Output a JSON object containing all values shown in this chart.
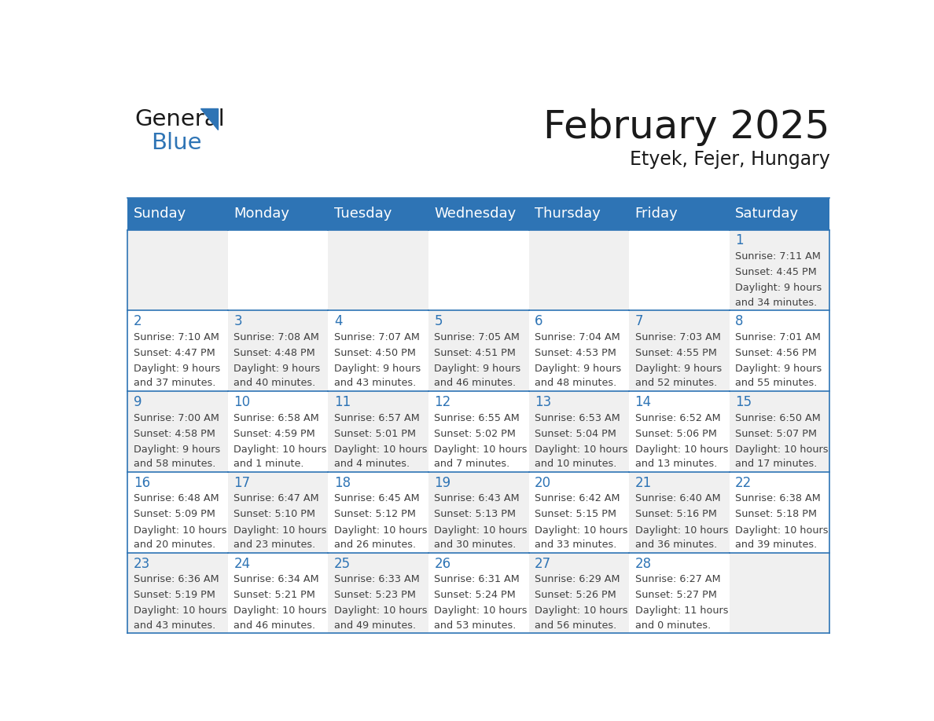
{
  "title": "February 2025",
  "subtitle": "Etyek, Fejer, Hungary",
  "days_of_week": [
    "Sunday",
    "Monday",
    "Tuesday",
    "Wednesday",
    "Thursday",
    "Friday",
    "Saturday"
  ],
  "header_bg": "#2E74B5",
  "header_text_color": "#FFFFFF",
  "cell_bg_odd": "#F0F0F0",
  "cell_bg_even": "#FFFFFF",
  "grid_line_color": "#2E74B5",
  "day_number_color": "#2E74B5",
  "info_text_color": "#404040",
  "logo_general_color": "#1A1A1A",
  "logo_blue_color": "#2E74B5",
  "calendar_data": [
    {
      "day": 1,
      "col": 6,
      "row": 0,
      "sunrise": "7:11 AM",
      "sunset": "4:45 PM",
      "daylight_line1": "Daylight: 9 hours",
      "daylight_line2": "and 34 minutes."
    },
    {
      "day": 2,
      "col": 0,
      "row": 1,
      "sunrise": "7:10 AM",
      "sunset": "4:47 PM",
      "daylight_line1": "Daylight: 9 hours",
      "daylight_line2": "and 37 minutes."
    },
    {
      "day": 3,
      "col": 1,
      "row": 1,
      "sunrise": "7:08 AM",
      "sunset": "4:48 PM",
      "daylight_line1": "Daylight: 9 hours",
      "daylight_line2": "and 40 minutes."
    },
    {
      "day": 4,
      "col": 2,
      "row": 1,
      "sunrise": "7:07 AM",
      "sunset": "4:50 PM",
      "daylight_line1": "Daylight: 9 hours",
      "daylight_line2": "and 43 minutes."
    },
    {
      "day": 5,
      "col": 3,
      "row": 1,
      "sunrise": "7:05 AM",
      "sunset": "4:51 PM",
      "daylight_line1": "Daylight: 9 hours",
      "daylight_line2": "and 46 minutes."
    },
    {
      "day": 6,
      "col": 4,
      "row": 1,
      "sunrise": "7:04 AM",
      "sunset": "4:53 PM",
      "daylight_line1": "Daylight: 9 hours",
      "daylight_line2": "and 48 minutes."
    },
    {
      "day": 7,
      "col": 5,
      "row": 1,
      "sunrise": "7:03 AM",
      "sunset": "4:55 PM",
      "daylight_line1": "Daylight: 9 hours",
      "daylight_line2": "and 52 minutes."
    },
    {
      "day": 8,
      "col": 6,
      "row": 1,
      "sunrise": "7:01 AM",
      "sunset": "4:56 PM",
      "daylight_line1": "Daylight: 9 hours",
      "daylight_line2": "and 55 minutes."
    },
    {
      "day": 9,
      "col": 0,
      "row": 2,
      "sunrise": "7:00 AM",
      "sunset": "4:58 PM",
      "daylight_line1": "Daylight: 9 hours",
      "daylight_line2": "and 58 minutes."
    },
    {
      "day": 10,
      "col": 1,
      "row": 2,
      "sunrise": "6:58 AM",
      "sunset": "4:59 PM",
      "daylight_line1": "Daylight: 10 hours",
      "daylight_line2": "and 1 minute."
    },
    {
      "day": 11,
      "col": 2,
      "row": 2,
      "sunrise": "6:57 AM",
      "sunset": "5:01 PM",
      "daylight_line1": "Daylight: 10 hours",
      "daylight_line2": "and 4 minutes."
    },
    {
      "day": 12,
      "col": 3,
      "row": 2,
      "sunrise": "6:55 AM",
      "sunset": "5:02 PM",
      "daylight_line1": "Daylight: 10 hours",
      "daylight_line2": "and 7 minutes."
    },
    {
      "day": 13,
      "col": 4,
      "row": 2,
      "sunrise": "6:53 AM",
      "sunset": "5:04 PM",
      "daylight_line1": "Daylight: 10 hours",
      "daylight_line2": "and 10 minutes."
    },
    {
      "day": 14,
      "col": 5,
      "row": 2,
      "sunrise": "6:52 AM",
      "sunset": "5:06 PM",
      "daylight_line1": "Daylight: 10 hours",
      "daylight_line2": "and 13 minutes."
    },
    {
      "day": 15,
      "col": 6,
      "row": 2,
      "sunrise": "6:50 AM",
      "sunset": "5:07 PM",
      "daylight_line1": "Daylight: 10 hours",
      "daylight_line2": "and 17 minutes."
    },
    {
      "day": 16,
      "col": 0,
      "row": 3,
      "sunrise": "6:48 AM",
      "sunset": "5:09 PM",
      "daylight_line1": "Daylight: 10 hours",
      "daylight_line2": "and 20 minutes."
    },
    {
      "day": 17,
      "col": 1,
      "row": 3,
      "sunrise": "6:47 AM",
      "sunset": "5:10 PM",
      "daylight_line1": "Daylight: 10 hours",
      "daylight_line2": "and 23 minutes."
    },
    {
      "day": 18,
      "col": 2,
      "row": 3,
      "sunrise": "6:45 AM",
      "sunset": "5:12 PM",
      "daylight_line1": "Daylight: 10 hours",
      "daylight_line2": "and 26 minutes."
    },
    {
      "day": 19,
      "col": 3,
      "row": 3,
      "sunrise": "6:43 AM",
      "sunset": "5:13 PM",
      "daylight_line1": "Daylight: 10 hours",
      "daylight_line2": "and 30 minutes."
    },
    {
      "day": 20,
      "col": 4,
      "row": 3,
      "sunrise": "6:42 AM",
      "sunset": "5:15 PM",
      "daylight_line1": "Daylight: 10 hours",
      "daylight_line2": "and 33 minutes."
    },
    {
      "day": 21,
      "col": 5,
      "row": 3,
      "sunrise": "6:40 AM",
      "sunset": "5:16 PM",
      "daylight_line1": "Daylight: 10 hours",
      "daylight_line2": "and 36 minutes."
    },
    {
      "day": 22,
      "col": 6,
      "row": 3,
      "sunrise": "6:38 AM",
      "sunset": "5:18 PM",
      "daylight_line1": "Daylight: 10 hours",
      "daylight_line2": "and 39 minutes."
    },
    {
      "day": 23,
      "col": 0,
      "row": 4,
      "sunrise": "6:36 AM",
      "sunset": "5:19 PM",
      "daylight_line1": "Daylight: 10 hours",
      "daylight_line2": "and 43 minutes."
    },
    {
      "day": 24,
      "col": 1,
      "row": 4,
      "sunrise": "6:34 AM",
      "sunset": "5:21 PM",
      "daylight_line1": "Daylight: 10 hours",
      "daylight_line2": "and 46 minutes."
    },
    {
      "day": 25,
      "col": 2,
      "row": 4,
      "sunrise": "6:33 AM",
      "sunset": "5:23 PM",
      "daylight_line1": "Daylight: 10 hours",
      "daylight_line2": "and 49 minutes."
    },
    {
      "day": 26,
      "col": 3,
      "row": 4,
      "sunrise": "6:31 AM",
      "sunset": "5:24 PM",
      "daylight_line1": "Daylight: 10 hours",
      "daylight_line2": "and 53 minutes."
    },
    {
      "day": 27,
      "col": 4,
      "row": 4,
      "sunrise": "6:29 AM",
      "sunset": "5:26 PM",
      "daylight_line1": "Daylight: 10 hours",
      "daylight_line2": "and 56 minutes."
    },
    {
      "day": 28,
      "col": 5,
      "row": 4,
      "sunrise": "6:27 AM",
      "sunset": "5:27 PM",
      "daylight_line1": "Daylight: 11 hours",
      "daylight_line2": "and 0 minutes."
    }
  ]
}
